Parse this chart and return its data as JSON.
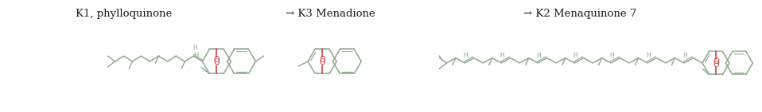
{
  "title1": "K1, phylloquinone",
  "title2": "→ K3 Menadione",
  "title3": "→ K2 Menaquinone 7",
  "bg_color": "#ffffff",
  "line_color": "#8aaa8a",
  "red_color": "#d04040",
  "text_color": "#1a1a1a",
  "fig_width": 9.58,
  "fig_height": 1.42,
  "dpi": 100
}
